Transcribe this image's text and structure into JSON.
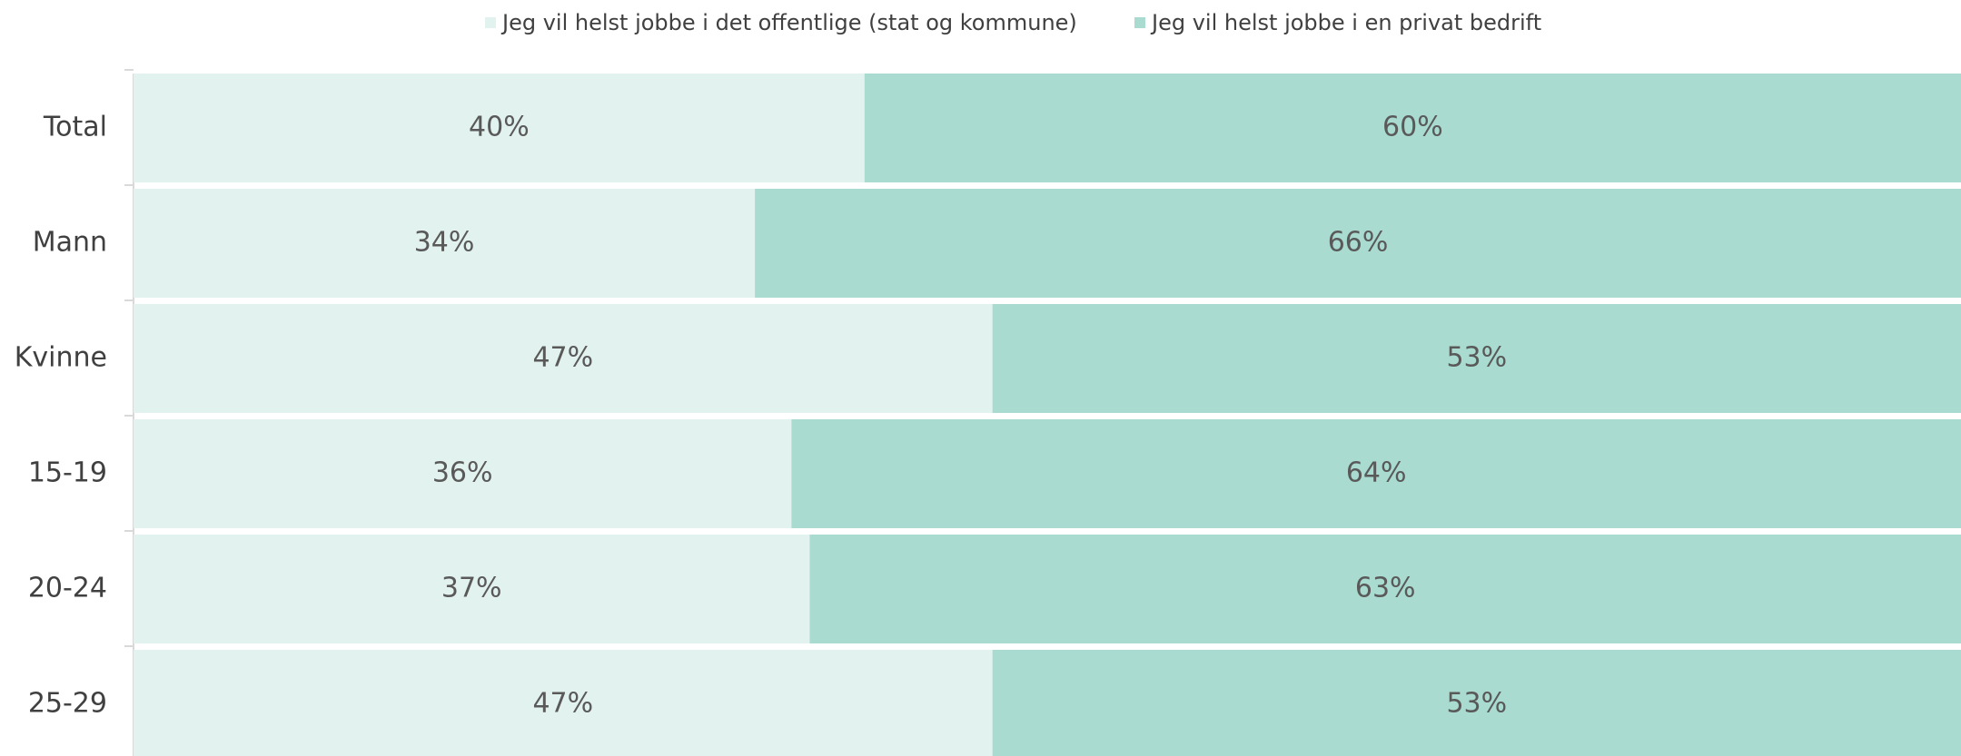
{
  "chart_data": {
    "type": "stacked-bar-horizontal",
    "categories": [
      "Total",
      "Mann",
      "Kvinne",
      "15-19",
      "20-24",
      "25-29"
    ],
    "series": [
      {
        "name": "Jeg vil helst jobbe i det offentlige (stat og kommune)",
        "color": "#e2f2ee",
        "values": [
          40,
          34,
          47,
          36,
          37,
          47
        ],
        "value_labels": [
          "40%",
          "34%",
          "47%",
          "36%",
          "37%",
          "47%"
        ]
      },
      {
        "name": "Jeg vil helst jobbe i en privat bedrift",
        "color": "#a9dbd0",
        "values": [
          60,
          66,
          53,
          64,
          63,
          53
        ],
        "value_labels": [
          "60%",
          "66%",
          "53%",
          "64%",
          "63%",
          "53%"
        ]
      }
    ],
    "legend": "top"
  }
}
